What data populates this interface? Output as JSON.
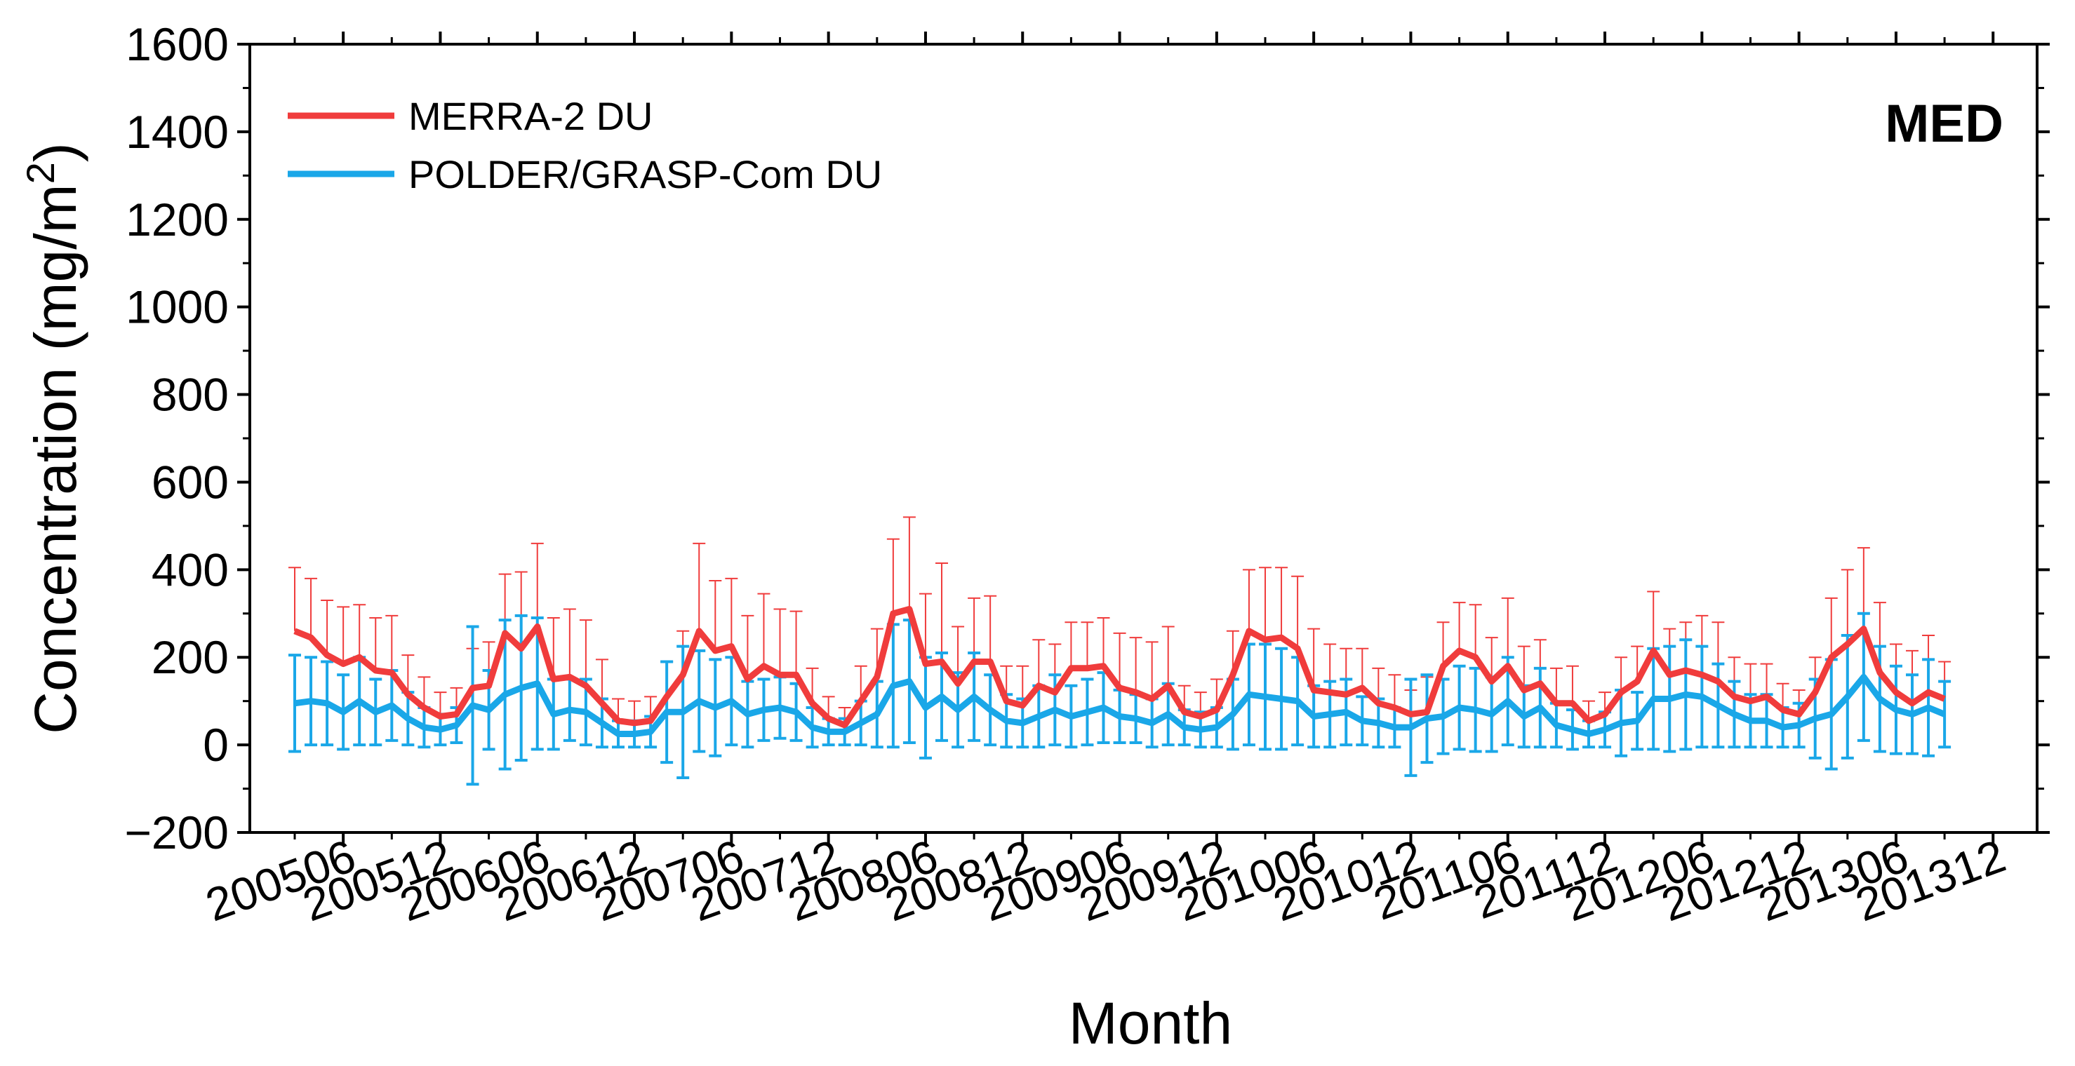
{
  "chart_data": {
    "type": "line",
    "panel_label": "MED",
    "xlabel": "Month",
    "ylabel": "Concentration (mg/m",
    "ylabel_superscript": "2",
    "ylabel_close": ")",
    "ylim": [
      -200,
      1600
    ],
    "yticks": [
      -200,
      0,
      200,
      400,
      600,
      800,
      1000,
      1200,
      1400,
      1600
    ],
    "ytick_labels": [
      "−200",
      "0",
      "200",
      "400",
      "600",
      "800",
      "1000",
      "1200",
      "1400",
      "1600"
    ],
    "x_start": "200503",
    "x_count": 106,
    "xtick_labels": [
      "200506",
      "200512",
      "200606",
      "200612",
      "200706",
      "200712",
      "200806",
      "200812",
      "200906",
      "200912",
      "201006",
      "201012",
      "201106",
      "201112",
      "201206",
      "201212",
      "201306",
      "201312"
    ],
    "xtick_index": [
      3,
      9,
      15,
      21,
      27,
      33,
      39,
      45,
      51,
      57,
      63,
      69,
      75,
      81,
      87,
      93,
      99,
      105
    ],
    "legend": [
      "MERRA-2 DU",
      "POLDER/GRASP-Com DU"
    ],
    "colors": {
      "merra": "#f03c3c",
      "polder": "#1aa7e8",
      "axis": "#000000"
    },
    "series": [
      {
        "name": "MERRA-2 DU",
        "values": [
          260,
          245,
          205,
          185,
          200,
          170,
          165,
          115,
          85,
          65,
          70,
          130,
          135,
          255,
          220,
          270,
          150,
          155,
          135,
          95,
          55,
          50,
          55,
          110,
          160,
          260,
          215,
          225,
          150,
          180,
          160,
          160,
          95,
          60,
          45,
          100,
          155,
          300,
          310,
          185,
          190,
          140,
          190,
          190,
          100,
          90,
          135,
          120,
          175,
          175,
          180,
          130,
          120,
          105,
          135,
          75,
          65,
          80,
          160,
          260,
          240,
          245,
          220,
          125,
          120,
          115,
          130,
          95,
          85,
          70,
          75,
          180,
          215,
          200,
          145,
          180,
          125,
          140,
          95,
          95,
          55,
          70,
          120,
          145,
          215,
          160,
          170,
          160,
          145,
          110,
          100,
          110,
          80,
          70,
          120,
          200,
          230,
          265,
          165,
          120,
          95,
          120,
          105
        ],
        "err": [
          145,
          135,
          125,
          130,
          120,
          120,
          130,
          90,
          70,
          55,
          60,
          90,
          100,
          135,
          175,
          190,
          140,
          155,
          150,
          100,
          50,
          50,
          55,
          80,
          100,
          200,
          160,
          155,
          145,
          165,
          150,
          145,
          80,
          50,
          40,
          80,
          110,
          170,
          210,
          160,
          225,
          130,
          145,
          150,
          80,
          90,
          105,
          110,
          105,
          105,
          110,
          125,
          125,
          130,
          135,
          60,
          55,
          70,
          100,
          140,
          165,
          160,
          165,
          140,
          110,
          105,
          90,
          80,
          75,
          55,
          80,
          100,
          110,
          120,
          100,
          155,
          100,
          100,
          80,
          85,
          45,
          50,
          80,
          80,
          135,
          105,
          110,
          135,
          135,
          90,
          85,
          75,
          60,
          55,
          80,
          135,
          170,
          185,
          160,
          110,
          120,
          130,
          85
        ],
        "error_bar_style": "upper"
      },
      {
        "name": "POLDER/GRASP-Com DU",
        "values": [
          95,
          100,
          95,
          75,
          100,
          75,
          90,
          60,
          40,
          35,
          45,
          90,
          80,
          115,
          130,
          140,
          70,
          80,
          75,
          50,
          25,
          25,
          30,
          75,
          75,
          100,
          85,
          100,
          70,
          80,
          85,
          75,
          40,
          30,
          30,
          50,
          70,
          135,
          145,
          85,
          110,
          80,
          110,
          80,
          55,
          50,
          65,
          80,
          65,
          75,
          85,
          65,
          60,
          50,
          70,
          40,
          35,
          40,
          70,
          115,
          110,
          105,
          100,
          65,
          70,
          75,
          55,
          50,
          40,
          40,
          60,
          65,
          85,
          80,
          70,
          100,
          65,
          85,
          45,
          35,
          25,
          35,
          50,
          55,
          105,
          105,
          115,
          110,
          90,
          70,
          55,
          55,
          40,
          45,
          60,
          70,
          110,
          155,
          105,
          80,
          70,
          85,
          70
        ],
        "err": [
          110,
          100,
          95,
          85,
          100,
          75,
          80,
          60,
          45,
          35,
          40,
          180,
          90,
          170,
          165,
          150,
          80,
          70,
          75,
          55,
          30,
          30,
          35,
          115,
          150,
          115,
          110,
          100,
          75,
          70,
          70,
          65,
          45,
          30,
          30,
          50,
          75,
          140,
          140,
          115,
          100,
          85,
          100,
          80,
          60,
          55,
          70,
          80,
          70,
          75,
          80,
          60,
          55,
          55,
          70,
          40,
          40,
          45,
          80,
          115,
          120,
          115,
          100,
          70,
          75,
          75,
          55,
          55,
          45,
          110,
          100,
          85,
          95,
          95,
          85,
          100,
          70,
          90,
          50,
          45,
          30,
          40,
          75,
          65,
          115,
          120,
          125,
          115,
          95,
          75,
          60,
          60,
          45,
          50,
          90,
          125,
          140,
          145,
          120,
          100,
          90,
          110,
          75
        ],
        "error_bar_style": "both"
      }
    ]
  }
}
